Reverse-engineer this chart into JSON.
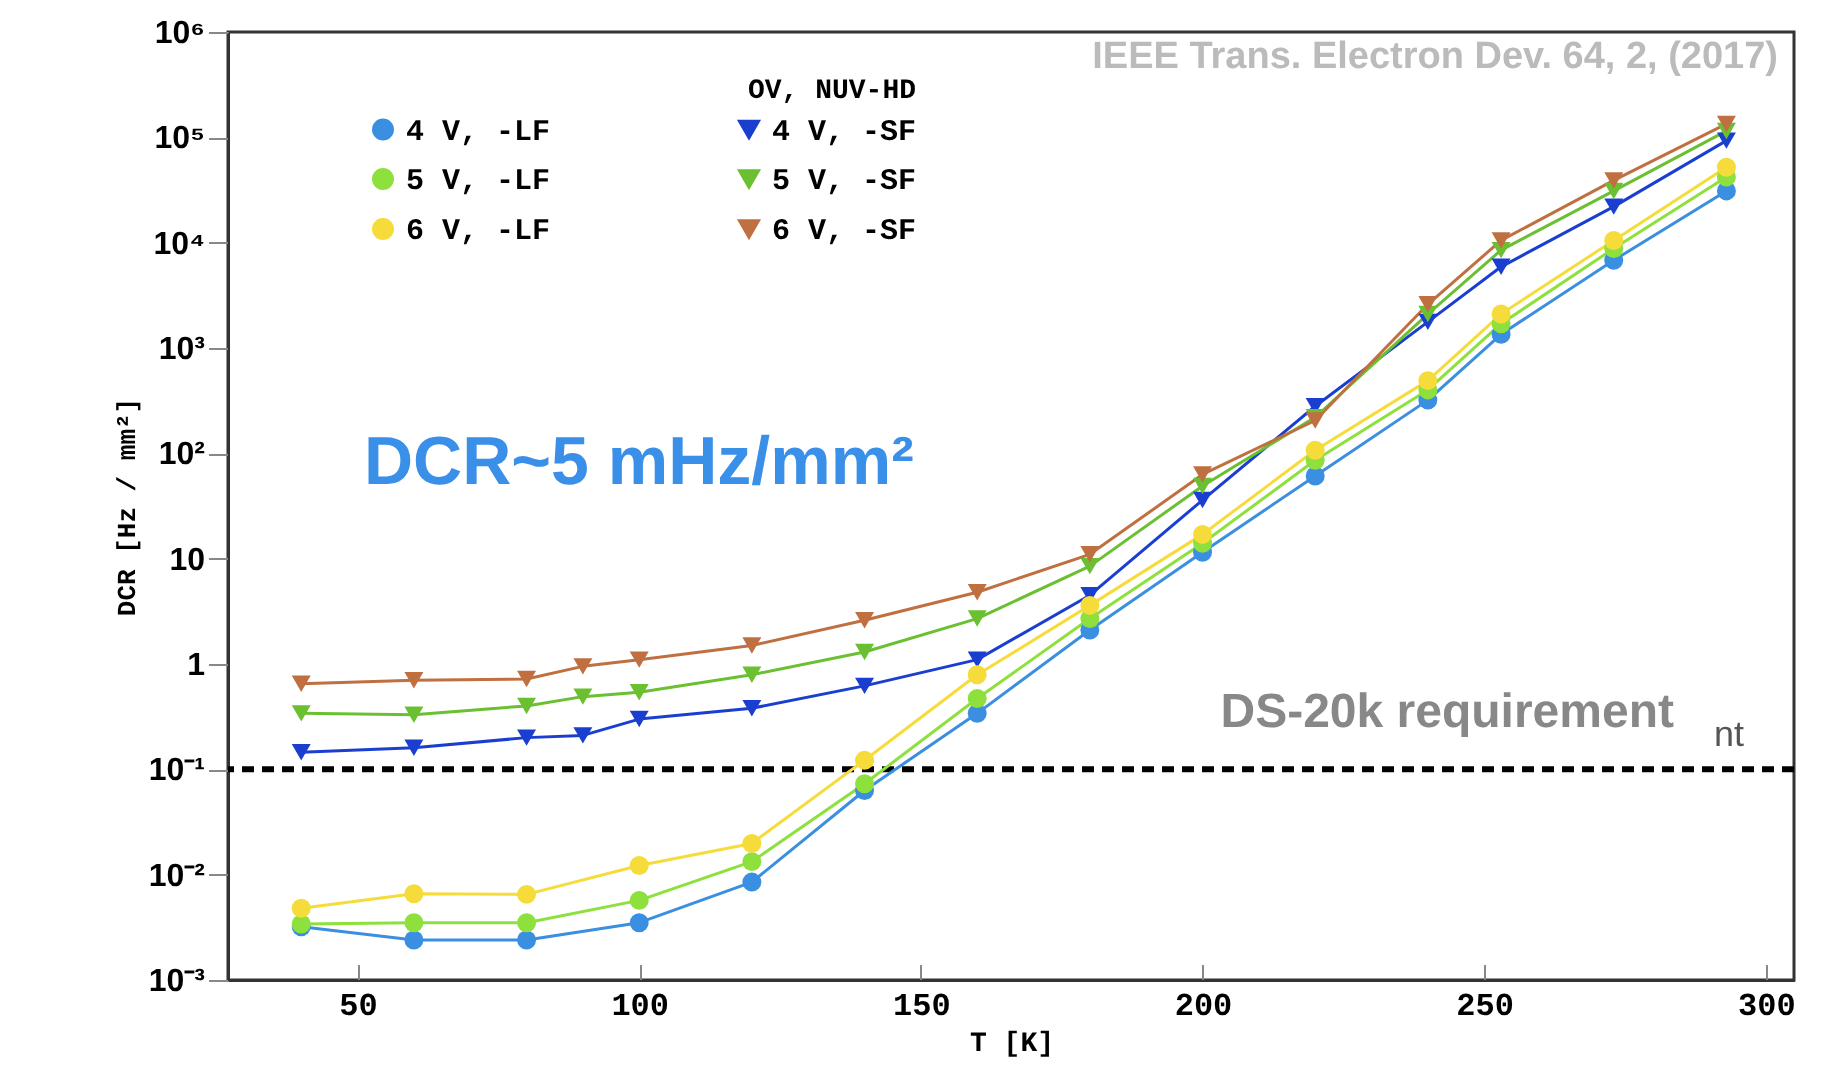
{
  "chart_data": {
    "type": "line",
    "xlabel": "T [K]",
    "ylabel": "DCR [Hz / mm²]",
    "legend_title": "OV, NUV-HD",
    "legend": "top",
    "log": "y",
    "grid": false,
    "x": [
      40,
      60,
      80,
      90,
      100,
      120,
      140,
      160,
      180,
      200,
      220,
      240,
      253,
      273,
      293
    ],
    "xlim": [
      27,
      305
    ],
    "xticks": [
      50,
      100,
      150,
      200,
      250,
      300
    ],
    "ylim": [
      0.001,
      1000000
    ],
    "yticks": [
      {
        "value": 0.001,
        "label": "10⁻³"
      },
      {
        "value": 0.01,
        "label": "10⁻²"
      },
      {
        "value": 0.1,
        "label": "10⁻¹"
      },
      {
        "value": 1,
        "label": "1"
      },
      {
        "value": 10,
        "label": "10"
      },
      {
        "value": 100,
        "label": "10²"
      },
      {
        "value": 1000,
        "label": "10³"
      },
      {
        "value": 10000,
        "label": "10⁴"
      },
      {
        "value": 100000,
        "label": "10⁵"
      },
      {
        "value": 1000000,
        "label": "10⁶"
      }
    ],
    "series": [
      {
        "name": "4 V, -LF",
        "color": "#3a8fe0",
        "marker": "circle",
        "values": [
          0.0032,
          0.0024,
          0.0024,
          null,
          0.0035,
          0.0085,
          0.063,
          0.34,
          2.1,
          11.5,
          61,
          320,
          1350,
          6800,
          31000
        ]
      },
      {
        "name": "4 V, -SF",
        "color": "#1a3fd0",
        "marker": "triangle",
        "values": [
          0.145,
          0.16,
          0.2,
          0.21,
          0.3,
          0.38,
          0.62,
          1.1,
          4.5,
          36,
          280,
          1770,
          5900,
          22000,
          93000
        ]
      },
      {
        "name": "5 V, -LF",
        "color": "#8ee03c",
        "marker": "circle",
        "values": [
          0.0034,
          0.0035,
          0.0035,
          null,
          0.0057,
          0.0133,
          0.073,
          0.47,
          2.7,
          14,
          86,
          400,
          1700,
          8800,
          42000
        ]
      },
      {
        "name": "5 V, -SF",
        "color": "#6ac030",
        "marker": "triangle",
        "values": [
          0.34,
          0.33,
          0.4,
          0.49,
          0.54,
          0.79,
          1.3,
          2.7,
          8.5,
          49,
          220,
          2100,
          8500,
          31000,
          115000
        ]
      },
      {
        "name": "6 V, -LF",
        "color": "#f5dc3a",
        "marker": "circle",
        "values": [
          0.0048,
          0.0066,
          0.0065,
          null,
          0.0122,
          0.0198,
          0.122,
          0.79,
          3.6,
          17,
          107,
          490,
          2100,
          10500,
          52000
        ]
      },
      {
        "name": "6 V, -SF",
        "color": "#c07040",
        "marker": "triangle",
        "values": [
          0.65,
          0.7,
          0.72,
          0.95,
          1.1,
          1.5,
          2.6,
          4.8,
          11,
          63,
          205,
          2600,
          10500,
          39000,
          134000
        ]
      }
    ],
    "ref_lines": [
      {
        "axis": "y",
        "value": 0.1,
        "label": "DS-20k requirement",
        "color": "#000000",
        "line_style": "dashed"
      }
    ],
    "annotations": [
      "IEEE Trans. Electron Dev. 64, 2, (2017)",
      "DCR~5 mHz/mm²",
      "nt"
    ]
  }
}
